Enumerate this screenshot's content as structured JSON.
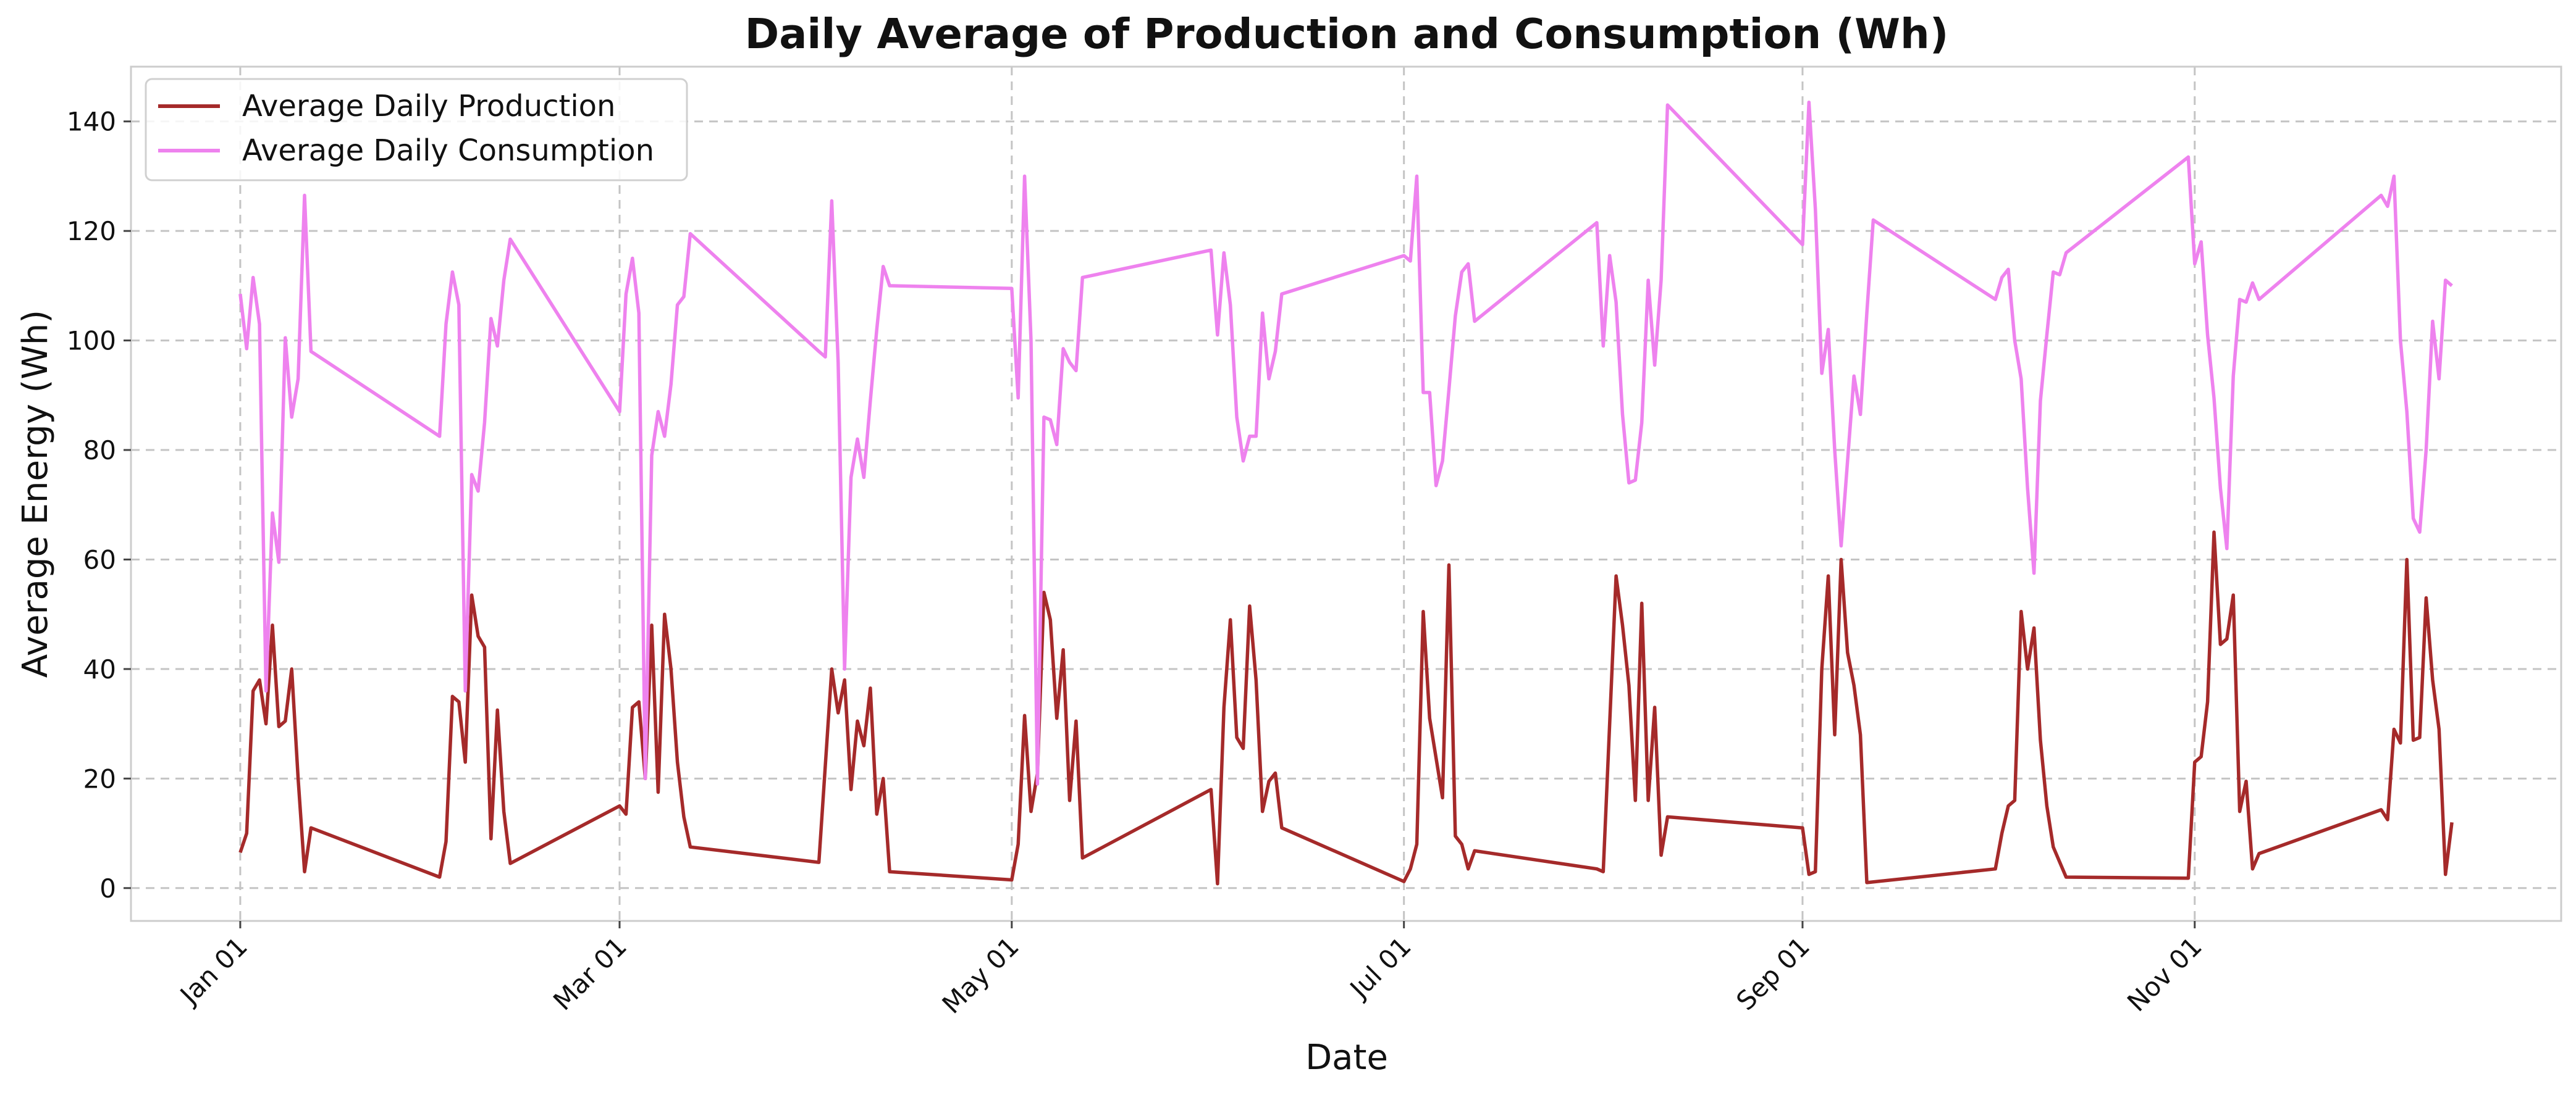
{
  "chart_data": {
    "type": "line",
    "title": "Daily Average of Production and Consumption (Wh)",
    "xlabel": "Date",
    "ylabel": "Average Energy (Wh)",
    "ylim": [
      -6,
      150
    ],
    "xlim": [
      -17,
      361
    ],
    "yticks": [
      0,
      20,
      40,
      60,
      80,
      100,
      120,
      140
    ],
    "xticks": [
      {
        "label": "Jan 01",
        "x": 0
      },
      {
        "label": "Mar 01",
        "x": 59
      },
      {
        "label": "May 01",
        "x": 120
      },
      {
        "label": "Jul 01",
        "x": 181
      },
      {
        "label": "Sep 01",
        "x": 243
      },
      {
        "label": "Nov 01",
        "x": 304
      }
    ],
    "grid": true,
    "legend_position": "top-left",
    "series": [
      {
        "name": "Average Daily Production",
        "color": "#a52a2a",
        "points": [
          [
            0,
            6.5
          ],
          [
            1,
            10
          ],
          [
            2,
            36
          ],
          [
            3,
            38
          ],
          [
            4,
            30
          ],
          [
            5,
            48
          ],
          [
            6,
            29.5
          ],
          [
            7,
            30.5
          ],
          [
            8,
            40
          ],
          [
            9,
            20
          ],
          [
            10,
            3
          ],
          [
            11,
            11
          ],
          [
            31,
            2
          ],
          [
            32,
            8.5
          ],
          [
            33,
            35
          ],
          [
            34,
            34
          ],
          [
            35,
            23
          ],
          [
            36,
            53.5
          ],
          [
            37,
            46
          ],
          [
            38,
            44
          ],
          [
            39,
            9
          ],
          [
            40,
            32.5
          ],
          [
            41,
            14
          ],
          [
            42,
            4.5
          ],
          [
            59,
            15
          ],
          [
            60,
            13.5
          ],
          [
            61,
            33
          ],
          [
            62,
            34
          ],
          [
            63,
            20
          ],
          [
            64,
            48
          ],
          [
            65,
            17.5
          ],
          [
            66,
            50
          ],
          [
            67,
            40
          ],
          [
            68,
            23
          ],
          [
            69,
            13
          ],
          [
            70,
            7.5
          ],
          [
            90,
            4.7
          ],
          [
            92,
            40
          ],
          [
            93,
            32
          ],
          [
            94,
            38
          ],
          [
            95,
            18
          ],
          [
            96,
            30.5
          ],
          [
            97,
            26
          ],
          [
            98,
            36.5
          ],
          [
            99,
            13.5
          ],
          [
            100,
            20
          ],
          [
            101,
            3
          ],
          [
            120,
            1.5
          ],
          [
            121,
            8
          ],
          [
            122,
            31.5
          ],
          [
            123,
            14
          ],
          [
            124,
            21
          ],
          [
            125,
            54
          ],
          [
            126,
            49
          ],
          [
            127,
            31
          ],
          [
            128,
            43.5
          ],
          [
            129,
            16
          ],
          [
            130,
            30.5
          ],
          [
            131,
            5.5
          ],
          [
            151,
            18
          ],
          [
            152,
            0.8
          ],
          [
            153,
            33
          ],
          [
            154,
            49
          ],
          [
            155,
            27.5
          ],
          [
            156,
            25.5
          ],
          [
            157,
            51.5
          ],
          [
            158,
            38
          ],
          [
            159,
            14
          ],
          [
            160,
            19.5
          ],
          [
            161,
            21
          ],
          [
            162,
            11
          ],
          [
            181,
            1.2
          ],
          [
            182,
            3.5
          ],
          [
            183,
            8
          ],
          [
            184,
            50.5
          ],
          [
            185,
            31
          ],
          [
            187,
            16.5
          ],
          [
            188,
            59
          ],
          [
            189,
            9.5
          ],
          [
            190,
            8
          ],
          [
            191,
            3.5
          ],
          [
            192,
            6.8
          ],
          [
            211,
            3.5
          ],
          [
            212,
            3
          ],
          [
            214,
            57
          ],
          [
            215,
            48
          ],
          [
            216,
            37
          ],
          [
            217,
            16
          ],
          [
            218,
            52
          ],
          [
            219,
            16
          ],
          [
            220,
            33
          ],
          [
            221,
            6
          ],
          [
            222,
            13
          ],
          [
            243,
            11
          ],
          [
            244,
            2.5
          ],
          [
            245,
            3
          ],
          [
            246,
            40
          ],
          [
            247,
            57
          ],
          [
            248,
            28
          ],
          [
            249,
            60
          ],
          [
            250,
            43
          ],
          [
            251,
            37
          ],
          [
            252,
            28
          ],
          [
            253,
            1
          ],
          [
            273,
            3.5
          ],
          [
            274,
            10
          ],
          [
            275,
            15
          ],
          [
            276,
            16
          ],
          [
            277,
            50.5
          ],
          [
            278,
            40
          ],
          [
            279,
            47.5
          ],
          [
            280,
            27
          ],
          [
            281,
            15
          ],
          [
            282,
            7.5
          ],
          [
            284,
            2
          ],
          [
            303,
            1.8
          ],
          [
            304,
            23
          ],
          [
            305,
            24
          ],
          [
            306,
            34
          ],
          [
            307,
            65
          ],
          [
            308,
            44.5
          ],
          [
            309,
            45.5
          ],
          [
            310,
            53.5
          ],
          [
            311,
            14
          ],
          [
            312,
            19.5
          ],
          [
            313,
            3.5
          ],
          [
            314,
            6.3
          ],
          [
            333,
            14.3
          ],
          [
            334,
            12.5
          ],
          [
            335,
            29
          ],
          [
            336,
            26.5
          ],
          [
            337,
            60
          ],
          [
            338,
            27
          ],
          [
            339,
            27.5
          ],
          [
            340,
            53
          ],
          [
            341,
            38
          ],
          [
            342,
            29
          ],
          [
            343,
            2.5
          ],
          [
            344,
            12
          ]
        ]
      },
      {
        "name": "Average Daily Consumption",
        "color": "#ee82ee",
        "points": [
          [
            0,
            108.5
          ],
          [
            1,
            98.5
          ],
          [
            2,
            111.5
          ],
          [
            3,
            103
          ],
          [
            4,
            36
          ],
          [
            5,
            68.5
          ],
          [
            6,
            59.5
          ],
          [
            7,
            100.5
          ],
          [
            8,
            86
          ],
          [
            9,
            93
          ],
          [
            10,
            126.5
          ],
          [
            11,
            98
          ],
          [
            31,
            82.5
          ],
          [
            32,
            103
          ],
          [
            33,
            112.5
          ],
          [
            34,
            106.5
          ],
          [
            35,
            36
          ],
          [
            36,
            75.5
          ],
          [
            37,
            72.5
          ],
          [
            38,
            85
          ],
          [
            39,
            104
          ],
          [
            40,
            99
          ],
          [
            41,
            111
          ],
          [
            42,
            118.5
          ],
          [
            59,
            87
          ],
          [
            60,
            108.5
          ],
          [
            61,
            115
          ],
          [
            62,
            105
          ],
          [
            63,
            20
          ],
          [
            64,
            79
          ],
          [
            65,
            87
          ],
          [
            66,
            82.5
          ],
          [
            67,
            92
          ],
          [
            68,
            106.5
          ],
          [
            69,
            108
          ],
          [
            70,
            119.5
          ],
          [
            90,
            98
          ],
          [
            91,
            97
          ],
          [
            92,
            125.5
          ],
          [
            93,
            96
          ],
          [
            94,
            40
          ],
          [
            95,
            75
          ],
          [
            96,
            82
          ],
          [
            97,
            75
          ],
          [
            98,
            89
          ],
          [
            99,
            102
          ],
          [
            100,
            113.5
          ],
          [
            101,
            110
          ],
          [
            120,
            109.5
          ],
          [
            121,
            89.5
          ],
          [
            122,
            130
          ],
          [
            123,
            100
          ],
          [
            124,
            19
          ],
          [
            125,
            86
          ],
          [
            126,
            85.5
          ],
          [
            127,
            81
          ],
          [
            128,
            98.5
          ],
          [
            129,
            96
          ],
          [
            130,
            94.5
          ],
          [
            131,
            111.5
          ],
          [
            151,
            116.5
          ],
          [
            152,
            101
          ],
          [
            153,
            116
          ],
          [
            154,
            106.5
          ],
          [
            155,
            86
          ],
          [
            156,
            78
          ],
          [
            157,
            82.5
          ],
          [
            158,
            82.5
          ],
          [
            159,
            105
          ],
          [
            160,
            93
          ],
          [
            161,
            98
          ],
          [
            162,
            108.5
          ],
          [
            181,
            115.5
          ],
          [
            182,
            114.5
          ],
          [
            183,
            130
          ],
          [
            184,
            90.5
          ],
          [
            185,
            90.5
          ],
          [
            186,
            73.5
          ],
          [
            187,
            78
          ],
          [
            188,
            91
          ],
          [
            189,
            104.5
          ],
          [
            190,
            112.5
          ],
          [
            191,
            114
          ],
          [
            192,
            103.5
          ],
          [
            211,
            121.5
          ],
          [
            212,
            99
          ],
          [
            213,
            115.5
          ],
          [
            214,
            107
          ],
          [
            215,
            86.5
          ],
          [
            216,
            74
          ],
          [
            217,
            74.5
          ],
          [
            218,
            85
          ],
          [
            219,
            111
          ],
          [
            220,
            95.5
          ],
          [
            221,
            111
          ],
          [
            222,
            143
          ],
          [
            243,
            117.5
          ],
          [
            244,
            143.5
          ],
          [
            245,
            124
          ],
          [
            246,
            94
          ],
          [
            247,
            102
          ],
          [
            248,
            80
          ],
          [
            249,
            62.5
          ],
          [
            250,
            78
          ],
          [
            251,
            93.5
          ],
          [
            252,
            86.5
          ],
          [
            253,
            105
          ],
          [
            254,
            122
          ],
          [
            273,
            107.5
          ],
          [
            274,
            111.5
          ],
          [
            275,
            113
          ],
          [
            276,
            100
          ],
          [
            277,
            93
          ],
          [
            278,
            73
          ],
          [
            279,
            57.5
          ],
          [
            280,
            89
          ],
          [
            281,
            101
          ],
          [
            282,
            112.5
          ],
          [
            283,
            112
          ],
          [
            284,
            116
          ],
          [
            303,
            133.5
          ],
          [
            304,
            114
          ],
          [
            305,
            118
          ],
          [
            306,
            101
          ],
          [
            307,
            89.5
          ],
          [
            308,
            73
          ],
          [
            309,
            62
          ],
          [
            310,
            93.5
          ],
          [
            311,
            107.5
          ],
          [
            312,
            107
          ],
          [
            313,
            110.5
          ],
          [
            314,
            107.5
          ],
          [
            333,
            126.5
          ],
          [
            334,
            124.5
          ],
          [
            335,
            130
          ],
          [
            336,
            100
          ],
          [
            337,
            87
          ],
          [
            338,
            67.5
          ],
          [
            339,
            65
          ],
          [
            340,
            80
          ],
          [
            341,
            103.5
          ],
          [
            342,
            93
          ],
          [
            343,
            111
          ],
          [
            344,
            110
          ]
        ]
      }
    ]
  }
}
